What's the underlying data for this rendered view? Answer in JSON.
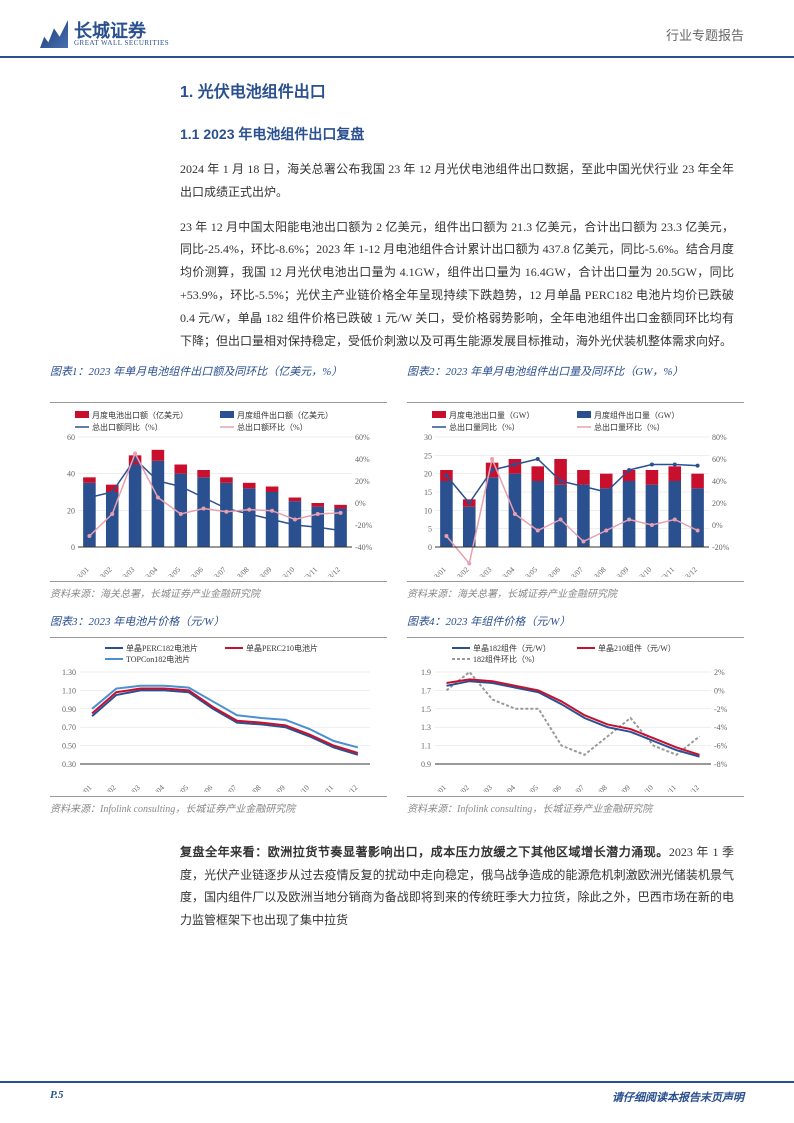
{
  "header": {
    "logo_cn": "长城证券",
    "logo_en": "GREAT WALL SECURITIES",
    "doc_type": "行业专题报告"
  },
  "section1": {
    "title": "1. 光伏电池组件出口",
    "sub1": {
      "title": "1.1 2023 年电池组件出口复盘",
      "p1": "2024 年 1 月 18 日，海关总署公布我国 23 年 12 月光伏电池组件出口数据，至此中国光伏行业 23 年全年出口成绩正式出炉。",
      "p2": "23 年 12 月中国太阳能电池出口额为 2 亿美元，组件出口额为 21.3 亿美元，合计出口额为 23.3 亿美元，同比-25.4%，环比-8.6%；2023 年 1-12 月电池组件合计累计出口额为 437.8 亿美元，同比-5.6%。结合月度均价测算，我国 12 月光伏电池出口量为 4.1GW，组件出口量为 16.4GW，合计出口量为 20.5GW，同比+53.9%，环比-5.5%；光伏主产业链价格全年呈现持续下跌趋势，12 月单晶 PERC182 电池片均价已跌破 0.4 元/W，单晶 182 组件价格已跌破 1 元/W 关口，受价格弱势影响，全年电池组件出口金额同环比均有下降；但出口量相对保持稳定，受低价刺激以及可再生能源发展目标推动，海外光伏装机整体需求向好。"
    }
  },
  "chart1": {
    "title": "图表1：2023 年单月电池组件出口额及同环比（亿美元，%）",
    "source": "资料来源：海关总署，长城证券产业金融研究院",
    "legend": {
      "cell": "月度电池出口额（亿美元）",
      "module": "月度组件出口额（亿美元）",
      "yoy": "总出口额同比（%）",
      "mom": "总出口额环比（%）"
    },
    "months": [
      "23/01",
      "23/02",
      "23/03",
      "23/04",
      "23/05",
      "23/06",
      "23/07",
      "23/08",
      "23/09",
      "23/10",
      "23/11",
      "23/12"
    ],
    "cell_color": "#c8102e",
    "module_color": "#2a5090",
    "yoy_color": "#2a5090",
    "mom_color": "#e8a0b0",
    "cell_vals": [
      3,
      4,
      5,
      6,
      5,
      4,
      3,
      3,
      3,
      2,
      2,
      2
    ],
    "module_vals": [
      35,
      30,
      45,
      47,
      40,
      38,
      35,
      32,
      30,
      25,
      22,
      21
    ],
    "yoy_vals": [
      5,
      10,
      40,
      20,
      15,
      5,
      -5,
      -10,
      -15,
      -20,
      -22,
      -25
    ],
    "mom_vals": [
      -30,
      -10,
      45,
      5,
      -10,
      -5,
      -8,
      -6,
      -7,
      -15,
      -10,
      -9
    ],
    "y1_max": 60,
    "y1_ticks": [
      0,
      20,
      40,
      60
    ],
    "y2_max": 60,
    "y2_min": -40,
    "y2_ticks": [
      -40,
      -20,
      0,
      20,
      40,
      60
    ]
  },
  "chart2": {
    "title": "图表2：2023 年单月电池组件出口量及同环比（GW，%）",
    "source": "资料来源：海关总署，长城证券产业金融研究院",
    "legend": {
      "module": "月度组件出口量（GW）",
      "cell": "月度电池出口量（GW）",
      "yoy": "总出口量同比（%）",
      "mom": "总出口量环比（%）"
    },
    "months": [
      "23/01",
      "23/02",
      "23/03",
      "23/04",
      "23/05",
      "23/06",
      "23/07",
      "23/08",
      "23/09",
      "23/10",
      "23/11",
      "23/12"
    ],
    "cell_color": "#c8102e",
    "module_color": "#2a5090",
    "yoy_color": "#2a5090",
    "mom_color": "#e8a0b0",
    "module_vals": [
      18,
      11,
      19,
      20,
      18,
      17,
      17,
      16,
      18,
      17,
      18,
      16
    ],
    "cell_vals": [
      3,
      2,
      4,
      4,
      4,
      7,
      4,
      4,
      3,
      4,
      4,
      4
    ],
    "yoy_vals": [
      45,
      20,
      50,
      55,
      60,
      40,
      35,
      30,
      50,
      55,
      55,
      54
    ],
    "mom_vals": [
      -10,
      -35,
      60,
      10,
      -5,
      5,
      -15,
      -5,
      5,
      0,
      5,
      -5
    ],
    "y1_max": 30,
    "y1_ticks": [
      0,
      5,
      10,
      15,
      20,
      25,
      30
    ],
    "y2_max": 80,
    "y2_min": -20,
    "y2_ticks": [
      -20,
      0,
      20,
      40,
      60,
      80
    ]
  },
  "chart3": {
    "title": "图表3：2023 年电池片价格（元/W）",
    "source": "资料来源：Infolink consulting，长城证券产业金融研究院",
    "legend": {
      "perc182": "单晶PERC182电池片",
      "perc210": "单晶PERC210电池片",
      "topcon": "TOPCon182电池片"
    },
    "months": [
      "23/01",
      "23/02",
      "23/03",
      "23/04",
      "23/05",
      "23/06",
      "23/07",
      "23/08",
      "23/09",
      "23/10",
      "23/11",
      "23/12"
    ],
    "perc182_color": "#2a5090",
    "perc210_color": "#c8102e",
    "topcon_color": "#4a90d0",
    "perc182": [
      0.82,
      1.05,
      1.1,
      1.1,
      1.08,
      0.9,
      0.75,
      0.73,
      0.7,
      0.6,
      0.48,
      0.4
    ],
    "perc210": [
      0.85,
      1.08,
      1.12,
      1.12,
      1.1,
      0.92,
      0.77,
      0.75,
      0.72,
      0.62,
      0.5,
      0.42
    ],
    "topcon": [
      0.9,
      1.12,
      1.15,
      1.15,
      1.13,
      0.98,
      0.83,
      0.8,
      0.78,
      0.68,
      0.55,
      0.48
    ],
    "y_ticks": [
      0.3,
      0.5,
      0.7,
      0.9,
      1.1,
      1.3
    ]
  },
  "chart4": {
    "title": "图表4：2023 年组件价格（元/W）",
    "source": "资料来源：Infolink consulting，长城证券产业金融研究院",
    "legend": {
      "m182": "单晶182组件（元/W）",
      "m210": "单晶210组件（元/W）",
      "mom": "182组件环比（%）"
    },
    "months": [
      "23/01",
      "23/02",
      "23/03",
      "23/04",
      "23/05",
      "23/06",
      "23/07",
      "23/08",
      "23/09",
      "23/10",
      "23/11",
      "23/12"
    ],
    "m182_color": "#2a5090",
    "m210_color": "#c8102e",
    "mom_color": "#999999",
    "m182": [
      1.75,
      1.8,
      1.78,
      1.73,
      1.68,
      1.55,
      1.4,
      1.3,
      1.25,
      1.15,
      1.05,
      0.98
    ],
    "m210": [
      1.78,
      1.82,
      1.8,
      1.75,
      1.7,
      1.58,
      1.43,
      1.33,
      1.28,
      1.18,
      1.08,
      1.0
    ],
    "mom": [
      0,
      2,
      -1,
      -2,
      -2,
      -6,
      -7,
      -5,
      -3,
      -6,
      -7,
      -5
    ],
    "y1_ticks": [
      0.9,
      1.1,
      1.3,
      1.5,
      1.7,
      1.9
    ],
    "y2_ticks": [
      -8,
      -6,
      -4,
      -2,
      0,
      2
    ]
  },
  "bottom": {
    "bold": "复盘全年来看：欧洲拉货节奏显著影响出口，成本压力放缓之下其他区域增长潜力涌现。",
    "rest": "2023 年 1 季度，光伏产业链逐步从过去疫情反复的扰动中走向稳定，俄乌战争造成的能源危机刺激欧洲光储装机景气度，国内组件厂以及欧洲当地分销商为备战即将到来的传统旺季大力拉货，除此之外，巴西市场在新的电力监管框架下也出现了集中拉货"
  },
  "footer": {
    "page": "P.5",
    "disclaimer": "请仔细阅读本报告末页声明"
  }
}
